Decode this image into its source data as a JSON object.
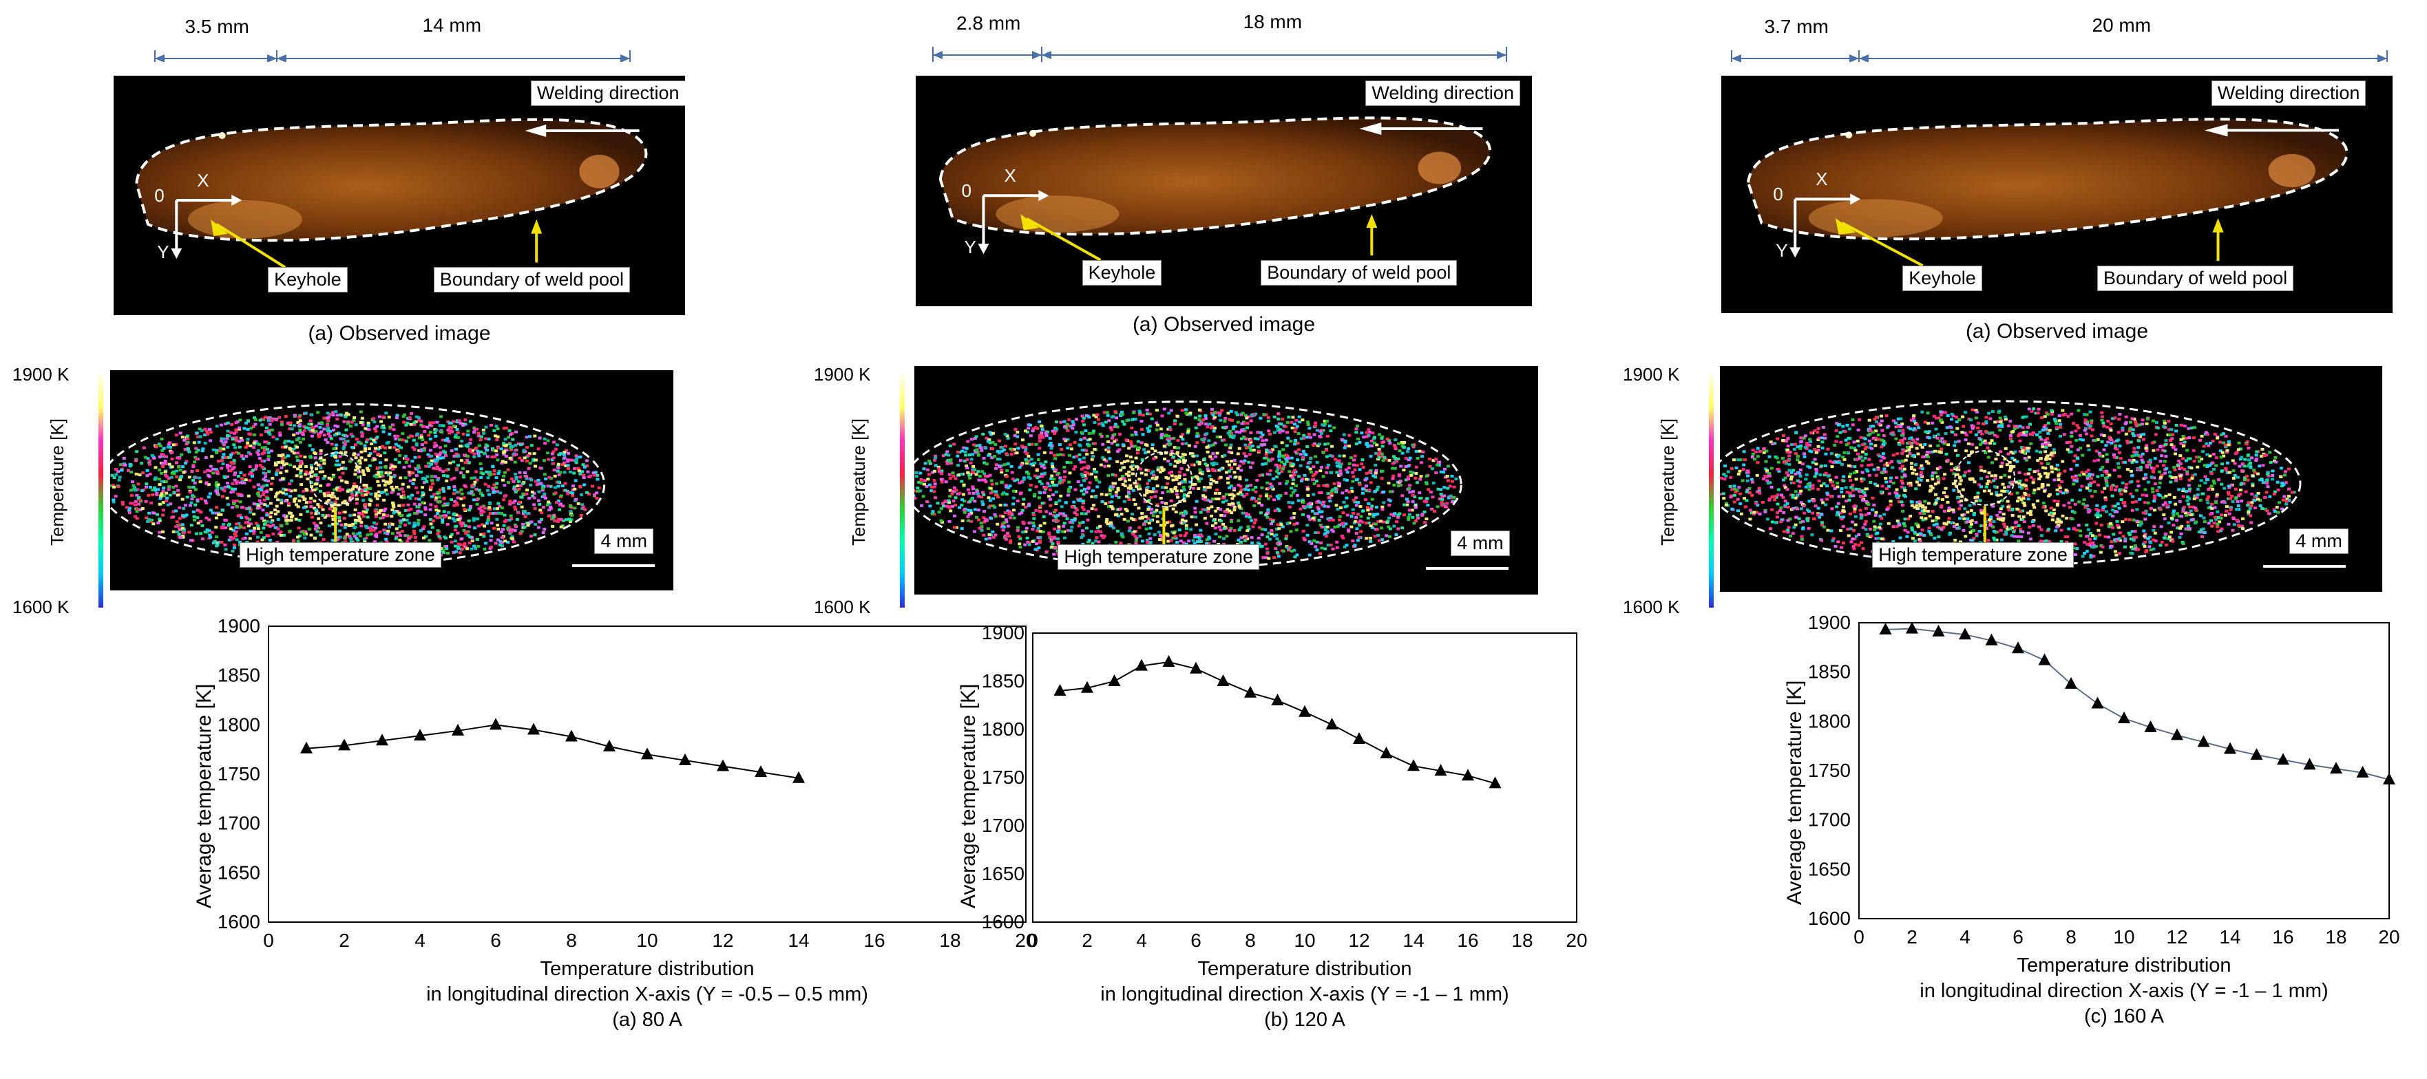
{
  "panels": [
    {
      "id": "a",
      "dims": {
        "left": "3.5 mm",
        "right": "14 mm"
      },
      "observed_caption": "(a) Observed image",
      "welding_direction": "Welding direction",
      "keyhole": "Keyhole",
      "boundary": "Boundary of weld pool",
      "axis_o": "0",
      "axis_x": "X",
      "axis_y": "Y",
      "thermo": {
        "max": "1900 K",
        "min": "1600 K",
        "axis": "Temperature [K]",
        "zone": "High temperature zone",
        "scale": "4 mm"
      },
      "chart_caption_1": "Temperature distribution",
      "chart_caption_2": "in longitudinal direction X-axis (Y = -0.5 – 0.5 mm)",
      "chart_caption_3": "(a) 80 A"
    },
    {
      "id": "b",
      "dims": {
        "left": "2.8 mm",
        "right": "18 mm"
      },
      "observed_caption": "(a) Observed image",
      "welding_direction": "Welding direction",
      "keyhole": "Keyhole",
      "boundary": "Boundary of weld pool",
      "axis_o": "0",
      "axis_x": "X",
      "axis_y": "Y",
      "thermo": {
        "max": "1900 K",
        "min": "1600 K",
        "axis": "Temperature [K]",
        "zone": "High temperature zone",
        "scale": "4 mm"
      },
      "chart_caption_1": "Temperature distribution",
      "chart_caption_2": "in longitudinal direction X-axis (Y = -1 – 1 mm)",
      "chart_caption_3": "(b) 120 A"
    },
    {
      "id": "c",
      "dims": {
        "left": "3.7 mm",
        "right": "20 mm"
      },
      "observed_caption": "(a) Observed image",
      "welding_direction": "Welding direction",
      "keyhole": "Keyhole",
      "boundary": "Boundary of weld pool",
      "axis_o": "0",
      "axis_x": "X",
      "axis_y": "Y",
      "thermo": {
        "max": "1900 K",
        "min": "1600 K",
        "axis": "Temperature [K]",
        "zone": "High temperature zone",
        "scale": "4 mm"
      },
      "chart_caption_1": "Temperature distribution",
      "chart_caption_2": "in longitudinal direction X-axis (Y = -1 – 1 mm)",
      "chart_caption_3": "(c) 160 A"
    }
  ],
  "chart_data": [
    {
      "type": "line",
      "title": "(a) 80 A",
      "xlabel": "Temperature distribution in longitudinal direction X-axis (Y = -0.5 – 0.5 mm)",
      "ylabel": "Average temperature [K]",
      "xlim": [
        0,
        20
      ],
      "ylim": [
        1600,
        1900
      ],
      "xticks": [
        "0",
        "2",
        "4",
        "6",
        "8",
        "10",
        "12",
        "14",
        "16",
        "18",
        "20"
      ],
      "yticks": [
        "1600",
        "1650",
        "1700",
        "1750",
        "1800",
        "1850",
        "1900"
      ],
      "x": [
        1,
        2,
        3,
        4,
        5,
        6,
        7,
        8,
        9,
        10,
        11,
        12,
        13,
        14
      ],
      "y": [
        1776,
        1779,
        1784,
        1789,
        1794,
        1800,
        1795,
        1788,
        1778,
        1770,
        1764,
        1758,
        1752,
        1746
      ],
      "fit": false
    },
    {
      "type": "line",
      "title": "(b) 120 A",
      "xlabel": "Temperature distribution in longitudinal direction X-axis (Y = -1 – 1 mm)",
      "ylabel": "Average temperature [K]",
      "xlim": [
        0,
        20
      ],
      "ylim": [
        1600,
        1900
      ],
      "xticks": [
        "0",
        "2",
        "4",
        "6",
        "8",
        "10",
        "12",
        "14",
        "16",
        "18",
        "20"
      ],
      "yticks": [
        "1600",
        "1650",
        "1700",
        "1750",
        "1800",
        "1850",
        "1900"
      ],
      "x": [
        1,
        2,
        3,
        4,
        5,
        6,
        7,
        8,
        9,
        10,
        11,
        12,
        13,
        14,
        15,
        16,
        17
      ],
      "y": [
        1840,
        1843,
        1850,
        1866,
        1870,
        1863,
        1850,
        1838,
        1830,
        1818,
        1805,
        1790,
        1775,
        1762,
        1757,
        1752,
        1744
      ],
      "fit": false
    },
    {
      "type": "line",
      "title": "(c) 160 A",
      "xlabel": "Temperature distribution in longitudinal direction X-axis (Y = -1 – 1 mm)",
      "ylabel": "Average temperature [K]",
      "xlim": [
        0,
        20
      ],
      "ylim": [
        1600,
        1900
      ],
      "xticks": [
        "0",
        "2",
        "4",
        "6",
        "8",
        "10",
        "12",
        "14",
        "16",
        "18",
        "20"
      ],
      "yticks": [
        "1600",
        "1650",
        "1700",
        "1750",
        "1800",
        "1850",
        "1900"
      ],
      "x": [
        1,
        2,
        3,
        4,
        5,
        6,
        7,
        8,
        9,
        10,
        11,
        12,
        13,
        14,
        15,
        16,
        17,
        18,
        19,
        20
      ],
      "y": [
        1893,
        1894,
        1891,
        1888,
        1882,
        1874,
        1862,
        1838,
        1818,
        1803,
        1794,
        1786,
        1779,
        1772,
        1766,
        1761,
        1756,
        1752,
        1748,
        1741
      ],
      "fit": true
    }
  ]
}
